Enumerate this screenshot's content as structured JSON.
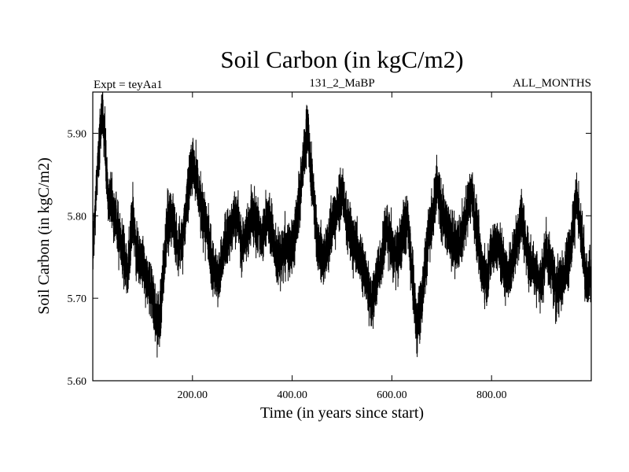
{
  "chart_data": {
    "type": "line",
    "title": "Soil Carbon (in kgC/m2)",
    "subtitle_left": "Expt = teyAa1",
    "subtitle_center": "131_2_MaBP",
    "subtitle_right": "ALL_MONTHS",
    "xlabel": "Time (in years since start)",
    "ylabel": "Soil Carbon (in kgC/m2)",
    "xlim": [
      0,
      1000
    ],
    "ylim": [
      5.6,
      5.95
    ],
    "x_ticks": [
      {
        "value": 200,
        "label": "200.00"
      },
      {
        "value": 400,
        "label": "400.00"
      },
      {
        "value": 600,
        "label": "600.00"
      },
      {
        "value": 800,
        "label": "800.00"
      }
    ],
    "y_ticks": [
      {
        "value": 5.6,
        "label": "5.60"
      },
      {
        "value": 5.7,
        "label": "5.70"
      },
      {
        "value": 5.8,
        "label": "5.80"
      },
      {
        "value": 5.9,
        "label": "5.90"
      }
    ],
    "grid": false,
    "line_color": "#000000",
    "series": [
      {
        "x": [
          0,
          10,
          15,
          20,
          25,
          30,
          40,
          50,
          60,
          70,
          80,
          90,
          100,
          110,
          120,
          130,
          135,
          140,
          150,
          160,
          170,
          180,
          190,
          200,
          210,
          220,
          230,
          240,
          250,
          260,
          270,
          280,
          290,
          300,
          310,
          320,
          330,
          340,
          350,
          360,
          370,
          380,
          390,
          400,
          410,
          420,
          430,
          440,
          450,
          460,
          470,
          480,
          490,
          500,
          510,
          520,
          530,
          540,
          550,
          560,
          570,
          580,
          590,
          600,
          610,
          620,
          630,
          640,
          650,
          660,
          670,
          680,
          690,
          700,
          710,
          720,
          730,
          740,
          750,
          760,
          770,
          780,
          790,
          800,
          810,
          820,
          830,
          840,
          850,
          860,
          870,
          880,
          890,
          900,
          910,
          920,
          930,
          940,
          950,
          960,
          970,
          980,
          990,
          1000
        ],
        "y": [
          5.76,
          5.86,
          5.9,
          5.93,
          5.88,
          5.83,
          5.81,
          5.78,
          5.76,
          5.73,
          5.8,
          5.75,
          5.74,
          5.72,
          5.7,
          5.67,
          5.68,
          5.72,
          5.79,
          5.8,
          5.76,
          5.77,
          5.82,
          5.87,
          5.84,
          5.8,
          5.78,
          5.74,
          5.72,
          5.75,
          5.77,
          5.79,
          5.8,
          5.76,
          5.78,
          5.8,
          5.79,
          5.77,
          5.8,
          5.78,
          5.74,
          5.75,
          5.77,
          5.76,
          5.8,
          5.85,
          5.9,
          5.84,
          5.77,
          5.75,
          5.76,
          5.79,
          5.81,
          5.83,
          5.79,
          5.77,
          5.76,
          5.74,
          5.72,
          5.69,
          5.72,
          5.75,
          5.79,
          5.76,
          5.75,
          5.77,
          5.8,
          5.74,
          5.66,
          5.7,
          5.76,
          5.79,
          5.84,
          5.8,
          5.79,
          5.77,
          5.76,
          5.78,
          5.8,
          5.83,
          5.78,
          5.74,
          5.72,
          5.76,
          5.77,
          5.75,
          5.73,
          5.74,
          5.77,
          5.8,
          5.76,
          5.74,
          5.73,
          5.72,
          5.76,
          5.73,
          5.71,
          5.72,
          5.74,
          5.77,
          5.82,
          5.78,
          5.72,
          5.73
        ]
      }
    ]
  }
}
